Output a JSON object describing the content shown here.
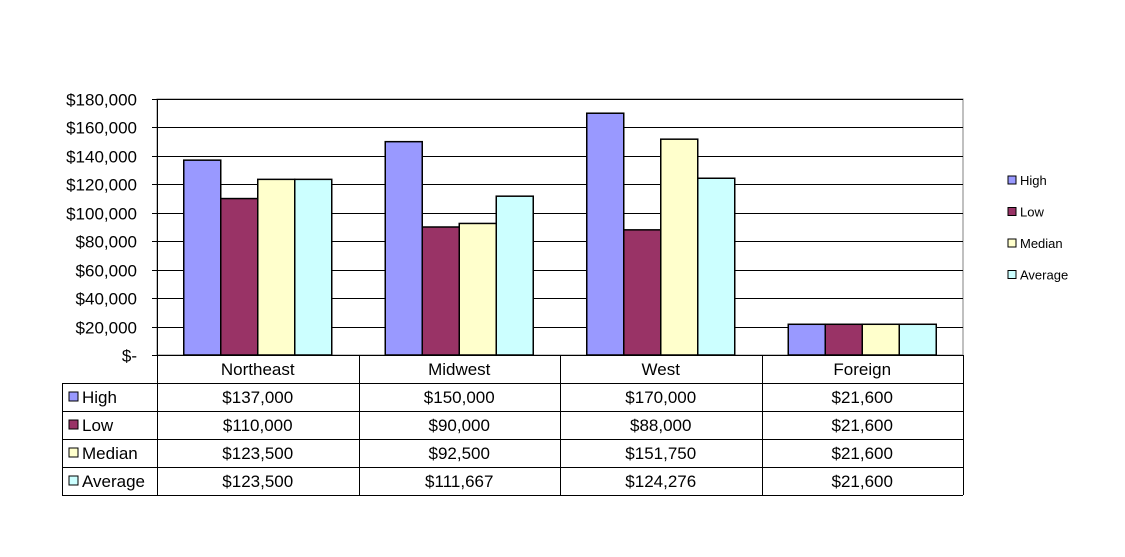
{
  "chart_data": {
    "type": "bar",
    "categories": [
      "Northeast",
      "Midwest",
      "West",
      "Foreign"
    ],
    "series": [
      {
        "name": "High",
        "color": "#9999ff",
        "values": [
          137000,
          150000,
          170000,
          21600
        ],
        "labels": [
          "$137,000",
          "$150,000",
          "$170,000",
          "$21,600"
        ]
      },
      {
        "name": "Low",
        "color": "#993366",
        "values": [
          110000,
          90000,
          88000,
          21600
        ],
        "labels": [
          "$110,000",
          "$90,000",
          "$88,000",
          "$21,600"
        ]
      },
      {
        "name": "Median",
        "color": "#ffffcc",
        "values": [
          123500,
          92500,
          151750,
          21600
        ],
        "labels": [
          "$123,500",
          "$92,500",
          "$151,750",
          "$21,600"
        ]
      },
      {
        "name": "Average",
        "color": "#ccffff",
        "values": [
          123500,
          111667,
          124276,
          21600
        ],
        "labels": [
          "$123,500",
          "$111,667",
          "$124,276",
          "$21,600"
        ]
      }
    ],
    "ylim": [
      0,
      180000
    ],
    "yticks": [
      0,
      20000,
      40000,
      60000,
      80000,
      100000,
      120000,
      140000,
      160000,
      180000
    ],
    "ytick_labels": [
      "$-",
      "$20,000",
      "$40,000",
      "$60,000",
      "$80,000",
      "$100,000",
      "$120,000",
      "$140,000",
      "$160,000",
      "$180,000"
    ],
    "grid": true,
    "legend_position": "right",
    "data_table": true,
    "title": "",
    "xlabel": "",
    "ylabel": ""
  }
}
